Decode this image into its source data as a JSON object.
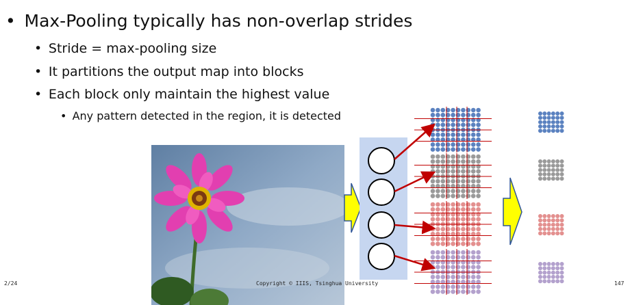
{
  "bullets": {
    "main": "Max-Pooling typically has non-overlap strides",
    "sub": [
      "Stride = max-pooling size",
      "It partitions the output map into blocks",
      "Each block only maintain the highest value"
    ],
    "subsub": "Any pattern detected in the region, it is detected"
  },
  "footer": {
    "left": "2/24",
    "center": "Copyright © IIIS, Tsinghua University",
    "right": "147"
  },
  "colors": {
    "blue": "#5b82c0",
    "gray": "#9a9a9a",
    "red": "#e3908f",
    "purple": "#b3a1cd",
    "arrow": "#c00000",
    "panel": "#c6d6f0",
    "yellow": "#ffff00"
  },
  "icons": [
    "bullet-dot",
    "flower-photo",
    "neuron-circle-icon",
    "yellow-arrow-icon",
    "red-arrow-icon",
    "feature-map-grid",
    "pooled-map-grid"
  ]
}
